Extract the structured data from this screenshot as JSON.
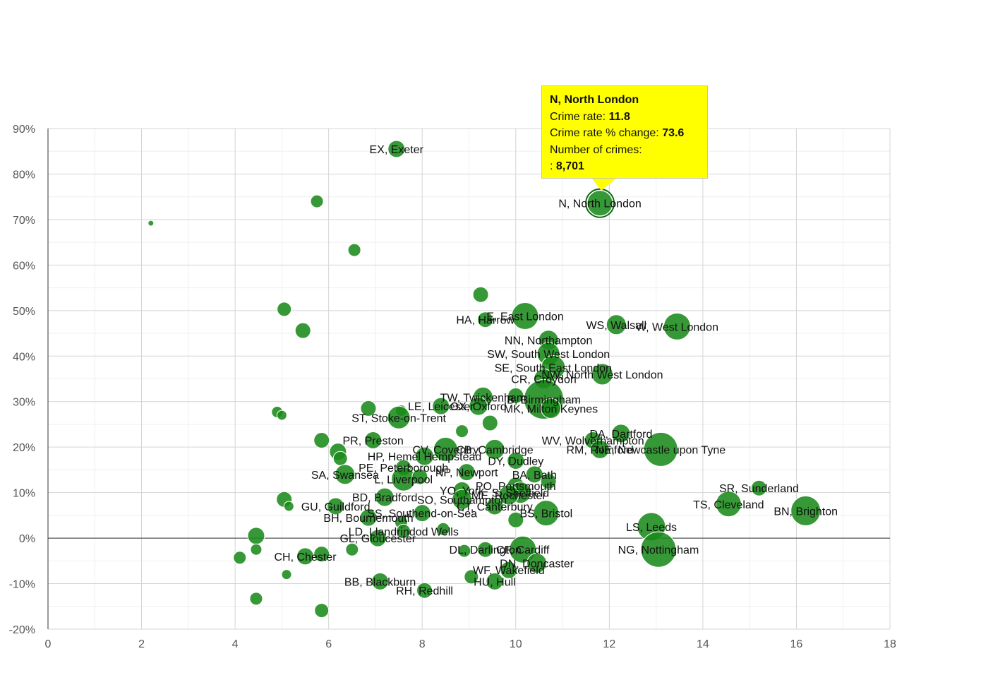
{
  "colors": {
    "bubble": "#1a8a1a",
    "bubble_stroke": "#0f6a0f",
    "grid_major": "#d4d4d4",
    "grid_minor": "#efefef",
    "axis": "#333333",
    "tooltip_bg": "#ffff00"
  },
  "tooltip": {
    "title": "N, North London",
    "rate_label": "Crime rate: ",
    "rate_value": "11.8",
    "change_label": "Crime rate % change: ",
    "change_value": "73.6",
    "count_label": "Number of crimes:",
    "count_prefix": ": ",
    "count_value": "8,701"
  },
  "chart_data": {
    "type": "scatter",
    "title": "",
    "xlabel": "",
    "ylabel": "",
    "xlim": [
      0,
      18
    ],
    "ylim": [
      -20,
      90
    ],
    "x_ticks": [
      "0",
      "2",
      "4",
      "6",
      "8",
      "10",
      "12",
      "14",
      "16",
      "18"
    ],
    "y_ticks": [
      "-20%",
      "-10%",
      "0%",
      "10%",
      "20%",
      "30%",
      "40%",
      "50%",
      "60%",
      "70%",
      "80%",
      "90%"
    ],
    "grid": true,
    "points": [
      {
        "label": "EX, Exeter",
        "x": 7.45,
        "y": 85.5,
        "r": 12
      },
      {
        "label": "",
        "x": 5.75,
        "y": 74.0,
        "r": 9
      },
      {
        "label": "",
        "x": 2.2,
        "y": 69.2,
        "r": 4
      },
      {
        "label": "",
        "x": 6.55,
        "y": 63.3,
        "r": 9
      },
      {
        "label": "N, North London",
        "x": 11.8,
        "y": 73.6,
        "r": 18
      },
      {
        "label": "",
        "x": 9.25,
        "y": 53.5,
        "r": 11
      },
      {
        "label": "",
        "x": 5.05,
        "y": 50.3,
        "r": 10
      },
      {
        "label": "",
        "x": 5.45,
        "y": 45.6,
        "r": 11
      },
      {
        "label": "HA, Harrow",
        "x": 9.35,
        "y": 48.0,
        "r": 11
      },
      {
        "label": "E, East London",
        "x": 10.2,
        "y": 48.8,
        "r": 19
      },
      {
        "label": "WS, Walsall",
        "x": 12.15,
        "y": 46.9,
        "r": 14
      },
      {
        "label": "W, West London",
        "x": 13.45,
        "y": 46.5,
        "r": 19
      },
      {
        "label": "NN, Northampton",
        "x": 10.7,
        "y": 43.5,
        "r": 14
      },
      {
        "label": "SW, South West London",
        "x": 10.7,
        "y": 40.5,
        "r": 16
      },
      {
        "label": "SE, South East London",
        "x": 10.8,
        "y": 37.5,
        "r": 17
      },
      {
        "label": "NW, North West London",
        "x": 11.85,
        "y": 36.0,
        "r": 15
      },
      {
        "label": "CR, Croydon",
        "x": 10.6,
        "y": 35.0,
        "r": 14
      },
      {
        "label": "TW, Twickenham",
        "x": 9.3,
        "y": 31.0,
        "r": 14
      },
      {
        "label": "B, Birmingham",
        "x": 10.6,
        "y": 30.5,
        "r": 28
      },
      {
        "label": "",
        "x": 10.0,
        "y": 31.3,
        "r": 11
      },
      {
        "label": "MK, Milton Keynes",
        "x": 10.75,
        "y": 28.5,
        "r": 14
      },
      {
        "label": "OX, Oxford",
        "x": 9.2,
        "y": 29.0,
        "r": 13
      },
      {
        "label": "LE, Leicester",
        "x": 8.4,
        "y": 29.0,
        "r": 12
      },
      {
        "label": "",
        "x": 7.55,
        "y": 28.0,
        "r": 8
      },
      {
        "label": "ST, Stoke-on-Trent",
        "x": 7.5,
        "y": 26.5,
        "r": 16
      },
      {
        "label": "",
        "x": 6.85,
        "y": 28.5,
        "r": 11
      },
      {
        "label": "",
        "x": 4.9,
        "y": 27.7,
        "r": 8
      },
      {
        "label": "",
        "x": 5.0,
        "y": 27.0,
        "r": 7
      },
      {
        "label": "",
        "x": 9.45,
        "y": 25.3,
        "r": 11
      },
      {
        "label": "",
        "x": 8.85,
        "y": 23.5,
        "r": 9
      },
      {
        "label": "DA, Dartford",
        "x": 12.25,
        "y": 23.0,
        "r": 13
      },
      {
        "label": "WV, Wolverhampton",
        "x": 11.65,
        "y": 21.5,
        "r": 12
      },
      {
        "label": "RM, Romford",
        "x": 11.8,
        "y": 19.5,
        "r": 13
      },
      {
        "label": "NE, Newcastle upon Tyne",
        "x": 13.1,
        "y": 19.5,
        "r": 24
      },
      {
        "label": "",
        "x": 5.85,
        "y": 21.5,
        "r": 11
      },
      {
        "label": "PR, Preston",
        "x": 6.95,
        "y": 21.5,
        "r": 12
      },
      {
        "label": "CV, Coventry",
        "x": 8.5,
        "y": 19.5,
        "r": 17
      },
      {
        "label": "CB, Cambridge",
        "x": 9.55,
        "y": 19.5,
        "r": 14
      },
      {
        "label": "DY, Dudley",
        "x": 10.0,
        "y": 17.0,
        "r": 12
      },
      {
        "label": "",
        "x": 6.2,
        "y": 19.0,
        "r": 12
      },
      {
        "label": "",
        "x": 6.25,
        "y": 17.5,
        "r": 10
      },
      {
        "label": "HP, Hemel Hempstead",
        "x": 8.05,
        "y": 18.0,
        "r": 13
      },
      {
        "label": "PE, Peterborough",
        "x": 7.6,
        "y": 15.5,
        "r": 11
      },
      {
        "label": "NP, Newport",
        "x": 8.95,
        "y": 14.5,
        "r": 12
      },
      {
        "label": "BA, Bath",
        "x": 10.4,
        "y": 14.0,
        "r": 12
      },
      {
        "label": "SA, Swansea",
        "x": 6.35,
        "y": 14.0,
        "r": 14
      },
      {
        "label": "L, Liverpool",
        "x": 7.6,
        "y": 13.0,
        "r": 17
      },
      {
        "label": "",
        "x": 7.95,
        "y": 13.5,
        "r": 11
      },
      {
        "label": "PO, Portsmouth",
        "x": 10.0,
        "y": 11.5,
        "r": 12
      },
      {
        "label": "",
        "x": 10.7,
        "y": 12.5,
        "r": 11
      },
      {
        "label": "YO, York",
        "x": 8.85,
        "y": 10.5,
        "r": 12
      },
      {
        "label": "S, Sheffield",
        "x": 10.1,
        "y": 10.0,
        "r": 15
      },
      {
        "label": "ME, Rochester",
        "x": 9.85,
        "y": 9.5,
        "r": 14
      },
      {
        "label": "BD, Bradford",
        "x": 7.2,
        "y": 9.0,
        "r": 13
      },
      {
        "label": "SO, Southampton",
        "x": 8.85,
        "y": 8.5,
        "r": 14
      },
      {
        "label": "CT, Canterbury",
        "x": 9.55,
        "y": 7.0,
        "r": 12
      },
      {
        "label": "BS, Bristol",
        "x": 10.65,
        "y": 5.5,
        "r": 18
      },
      {
        "label": "",
        "x": 5.05,
        "y": 8.5,
        "r": 11
      },
      {
        "label": "",
        "x": 5.15,
        "y": 7.0,
        "r": 7
      },
      {
        "label": "GU, Guildford",
        "x": 6.15,
        "y": 7.0,
        "r": 12
      },
      {
        "label": "SS, Southend-on-Sea",
        "x": 8.0,
        "y": 5.5,
        "r": 12
      },
      {
        "label": "BH, Bournemouth",
        "x": 6.85,
        "y": 4.5,
        "r": 12
      },
      {
        "label": "",
        "x": 7.55,
        "y": 3.5,
        "r": 9
      },
      {
        "label": "",
        "x": 10.0,
        "y": 4.0,
        "r": 11
      },
      {
        "label": "LD, Llandrindod Wells",
        "x": 7.6,
        "y": 1.5,
        "r": 10
      },
      {
        "label": "",
        "x": 8.45,
        "y": 2.0,
        "r": 9
      },
      {
        "label": "GL, Gloucester",
        "x": 7.05,
        "y": 0.0,
        "r": 12
      },
      {
        "label": "",
        "x": 4.45,
        "y": 0.5,
        "r": 12
      },
      {
        "label": "LS, Leeds",
        "x": 12.9,
        "y": 2.5,
        "r": 20
      },
      {
        "label": "SR, Sunderland",
        "x": 15.2,
        "y": 11.0,
        "r": 11
      },
      {
        "label": "TS, Cleveland",
        "x": 14.55,
        "y": 7.5,
        "r": 18
      },
      {
        "label": "BN, Brighton",
        "x": 16.2,
        "y": 6.0,
        "r": 21
      },
      {
        "label": "",
        "x": 4.45,
        "y": -2.5,
        "r": 8
      },
      {
        "label": "",
        "x": 4.1,
        "y": -4.3,
        "r": 9
      },
      {
        "label": "",
        "x": 6.5,
        "y": -2.5,
        "r": 9
      },
      {
        "label": "CH, Chester",
        "x": 5.5,
        "y": -4.0,
        "r": 12
      },
      {
        "label": "",
        "x": 5.85,
        "y": -3.5,
        "r": 11
      },
      {
        "label": "DL, Darlington",
        "x": 9.35,
        "y": -2.5,
        "r": 11
      },
      {
        "label": "",
        "x": 8.9,
        "y": -2.8,
        "r": 9
      },
      {
        "label": "CF, Cardiff",
        "x": 10.15,
        "y": -2.5,
        "r": 19
      },
      {
        "label": "NG, Nottingham",
        "x": 13.05,
        "y": -2.5,
        "r": 25
      },
      {
        "label": "DN, Doncaster",
        "x": 10.45,
        "y": -5.5,
        "r": 14
      },
      {
        "label": "WF, Wakefield",
        "x": 9.85,
        "y": -7.0,
        "r": 12
      },
      {
        "label": "",
        "x": 5.1,
        "y": -8.0,
        "r": 7
      },
      {
        "label": "",
        "x": 9.05,
        "y": -8.5,
        "r": 10
      },
      {
        "label": "HU, Hull",
        "x": 9.55,
        "y": -9.5,
        "r": 12
      },
      {
        "label": "BB, Blackburn",
        "x": 7.1,
        "y": -9.5,
        "r": 12
      },
      {
        "label": "RH, Redhill",
        "x": 8.05,
        "y": -11.5,
        "r": 11
      },
      {
        "label": "",
        "x": 4.45,
        "y": -13.3,
        "r": 9
      },
      {
        "label": "",
        "x": 5.85,
        "y": -15.9,
        "r": 10
      }
    ]
  }
}
